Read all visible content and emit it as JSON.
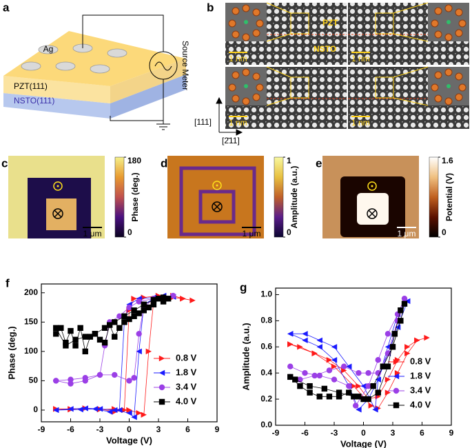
{
  "panel_a": {
    "label": "a",
    "electrode": "Ag",
    "top_layer": "PZT(111)",
    "bottom_layer": "NSTO(111)",
    "instrument": "Source Meter"
  },
  "panel_b": {
    "label": "b",
    "top_region": "PZT",
    "bottom_region": "NSTO",
    "scale_bars": [
      "1 nm",
      "1 nm",
      "1 nm",
      "1 nm"
    ],
    "axis_vertical": "[111]",
    "axis_horizontal": "[2̄11]"
  },
  "maps": [
    {
      "label": "c",
      "colorbar_label": "Phase (deg.)",
      "colorbar_ticks": [
        0,
        180
      ],
      "colormap": [
        "#0b0320",
        "#4a1080",
        "#c0504d",
        "#e89a30",
        "#f5f08a"
      ],
      "scale_bar": "1 μm"
    },
    {
      "label": "d",
      "colorbar_label": "Amplitude (a.u.)",
      "colorbar_ticks": [
        0,
        1
      ],
      "colormap": [
        "#0a0530",
        "#5a1d8a",
        "#c0602a",
        "#e8c040",
        "#f8f8a0"
      ],
      "scale_bar": "1 μm"
    },
    {
      "label": "e",
      "colorbar_label": "Potential (V)",
      "colorbar_ticks": [
        0,
        1.6
      ],
      "colormap": [
        "#000000",
        "#5a1000",
        "#c06020",
        "#f0c080",
        "#ffffff"
      ],
      "scale_bar": "1 μm"
    }
  ],
  "chart_data": [
    {
      "type": "line",
      "label": "f",
      "xlabel": "Voltage (V)",
      "ylabel": "Phase (deg.)",
      "xlim": [
        -9,
        9
      ],
      "xticks": [
        -9,
        -6,
        -3,
        0,
        3,
        6,
        9
      ],
      "ylim": [
        -20,
        215
      ],
      "yticks": [
        0,
        50,
        100,
        150,
        200
      ],
      "legend": "lower right",
      "series": [
        {
          "name": "0.8 V",
          "color": "#ff1a1a",
          "marker": "triangle-right",
          "x": [
            -7.5,
            -6,
            -4.5,
            -3,
            -1.5,
            0,
            1,
            1.5,
            2,
            2.5,
            3.5,
            4.5,
            5.5,
            6.5,
            5.5,
            4.5,
            3,
            1.5,
            0.5,
            0,
            -0.5,
            -1.5,
            -3,
            -4.5,
            -6,
            -7.5
          ],
          "values": [
            2,
            2,
            3,
            1,
            2,
            0,
            -5,
            -8,
            100,
            185,
            192,
            195,
            190,
            187,
            190,
            192,
            195,
            192,
            190,
            170,
            0,
            -3,
            2,
            3,
            1,
            2
          ]
        },
        {
          "name": "1.8 V",
          "color": "#1a1aff",
          "marker": "triangle-left",
          "x": [
            -7.5,
            -6,
            -4.5,
            -3,
            -1.5,
            0,
            0.5,
            1,
            1.5,
            2.5,
            3.5,
            4.5,
            3.5,
            2.5,
            1,
            0,
            -0.5,
            -1,
            -2,
            -3.5,
            -5,
            -7.5
          ],
          "values": [
            0,
            2,
            3,
            2,
            0,
            -5,
            -12,
            100,
            180,
            190,
            195,
            193,
            195,
            192,
            190,
            180,
            150,
            0,
            -3,
            2,
            1,
            0
          ]
        },
        {
          "name": "3.4 V",
          "color": "#9b3fe6",
          "marker": "circle",
          "x": [
            -7.5,
            -6,
            -4.5,
            -3,
            -1.5,
            0,
            0.5,
            1,
            1.5,
            2.5,
            3.5,
            4.5,
            3.5,
            2.5,
            1,
            0,
            -1,
            -2,
            -2.5,
            -3,
            -4.5,
            -6,
            -7.5
          ],
          "values": [
            50,
            52,
            55,
            60,
            60,
            50,
            55,
            130,
            175,
            190,
            190,
            195,
            192,
            190,
            185,
            175,
            160,
            150,
            110,
            60,
            50,
            45,
            50
          ]
        },
        {
          "name": "4.0 V",
          "color": "#000000",
          "marker": "square",
          "x": [
            -7.5,
            -7,
            -6.5,
            -6,
            -5.5,
            -5,
            -4.5,
            -4,
            -3.5,
            -3,
            -2.5,
            -2,
            -1.5,
            -1,
            -0.5,
            0,
            0.5,
            1,
            1.5,
            2,
            2.5,
            3,
            3.5,
            4,
            3.5,
            2.5,
            1.5,
            0.5,
            -0.5,
            -1.5,
            -2.5,
            -3.5,
            -4.5,
            -5.5,
            -6.5,
            -7.5
          ],
          "values": [
            130,
            140,
            115,
            135,
            110,
            140,
            100,
            125,
            130,
            120,
            115,
            145,
            125,
            140,
            150,
            155,
            160,
            165,
            170,
            175,
            180,
            190,
            185,
            190,
            192,
            188,
            180,
            170,
            160,
            150,
            140,
            130,
            125,
            120,
            110,
            140
          ]
        }
      ]
    },
    {
      "type": "line",
      "label": "g",
      "xlabel": "Voltage (V)",
      "ylabel": "Amplitude (a.u.)",
      "xlim": [
        -9,
        9
      ],
      "xticks": [
        -9,
        -6,
        -3,
        0,
        3,
        6,
        9
      ],
      "ylim": [
        0,
        1.05
      ],
      "yticks": [
        {
          "value": 0,
          "label": "0.0"
        },
        0.2,
        0.4,
        0.6,
        0.8,
        {
          "value": 1,
          "label": "1.0"
        }
      ],
      "legend": "lower right",
      "series": [
        {
          "name": "0.8 V",
          "color": "#ff1a1a",
          "marker": "triangle-right",
          "x": [
            -7.5,
            -5,
            -3,
            -1,
            0.8,
            1.5,
            2.5,
            3.5,
            4.5,
            5.5,
            6.5,
            5.5,
            4.5,
            3.5,
            2.5,
            1.5,
            0.5,
            -0.5,
            -2,
            -3.5,
            -5,
            -6.5,
            -7.5
          ],
          "values": [
            0.62,
            0.55,
            0.45,
            0.3,
            0.15,
            0.13,
            0.25,
            0.4,
            0.55,
            0.65,
            0.67,
            0.65,
            0.6,
            0.5,
            0.35,
            0.22,
            0.2,
            0.3,
            0.42,
            0.5,
            0.55,
            0.6,
            0.62
          ]
        },
        {
          "name": "1.8 V",
          "color": "#1a1aff",
          "marker": "triangle-left",
          "x": [
            -7.5,
            -6,
            -4.5,
            -3,
            -1.5,
            -0.5,
            0.5,
            1.5,
            2.5,
            3.5,
            4.5,
            3.5,
            2.5,
            1.5,
            1.2,
            0,
            -1.5,
            -3,
            -4.5,
            -6,
            -7.5
          ],
          "values": [
            0.7,
            0.65,
            0.6,
            0.5,
            0.3,
            0.12,
            0.2,
            0.35,
            0.55,
            0.75,
            0.95,
            0.85,
            0.6,
            0.35,
            0.12,
            0.3,
            0.45,
            0.6,
            0.65,
            0.7,
            0.7
          ]
        },
        {
          "name": "3.4 V",
          "color": "#9b3fe6",
          "marker": "circle",
          "x": [
            -7.5,
            -6,
            -4.5,
            -3,
            -1.5,
            -0.8,
            0.5,
            1.5,
            2.5,
            3.5,
            4.2,
            3.5,
            2.5,
            1.5,
            0.5,
            -0.5,
            -2,
            -3.5,
            -5,
            -6.5,
            -7.5
          ],
          "values": [
            0.45,
            0.4,
            0.38,
            0.35,
            0.3,
            0.15,
            0.3,
            0.5,
            0.7,
            0.85,
            0.97,
            0.8,
            0.55,
            0.4,
            0.4,
            0.4,
            0.45,
            0.42,
            0.38,
            0.35,
            0.37
          ]
        },
        {
          "name": "4.0 V",
          "color": "#000000",
          "marker": "square",
          "x": [
            -7.5,
            -6.5,
            -5.5,
            -4.5,
            -3.5,
            -2.5,
            -1.5,
            -0.5,
            0.5,
            1.5,
            2.5,
            3.2,
            3.8,
            4.2,
            3.8,
            3,
            2,
            1,
            0,
            -1,
            -2.5,
            -4,
            -5.5,
            -7
          ],
          "values": [
            0.37,
            0.3,
            0.25,
            0.22,
            0.22,
            0.22,
            0.25,
            0.22,
            0.2,
            0.25,
            0.45,
            0.7,
            0.88,
            0.93,
            0.8,
            0.6,
            0.45,
            0.3,
            0.2,
            0.22,
            0.25,
            0.28,
            0.3,
            0.35
          ]
        }
      ]
    }
  ]
}
